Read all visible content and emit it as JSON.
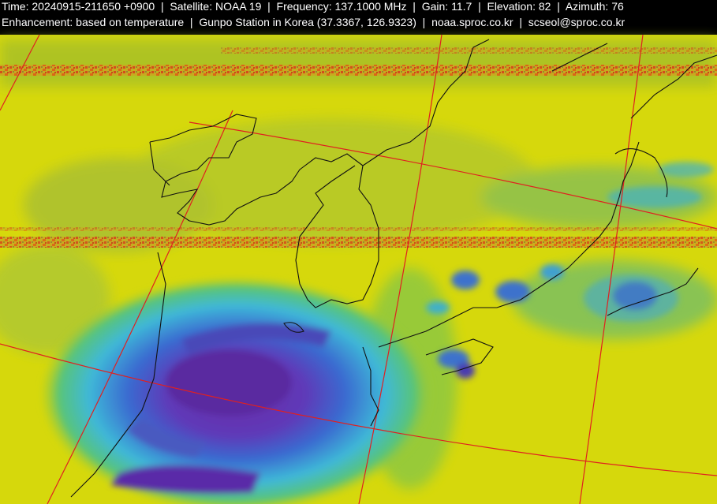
{
  "header": {
    "line1": "Time: 20240915-211650 +0900  |  Satellite: NOAA 19  |  Frequency: 137.1000 MHz  |  Gain: 11.7  |  Elevation: 82  |  Azimuth: 76",
    "line2": "Enhancement: based on temperature  |  Gunpo Station in Korea (37.3367, 126.9323)  |  noaa.sproc.co.kr  |  scseol@sproc.co.kr"
  }
}
